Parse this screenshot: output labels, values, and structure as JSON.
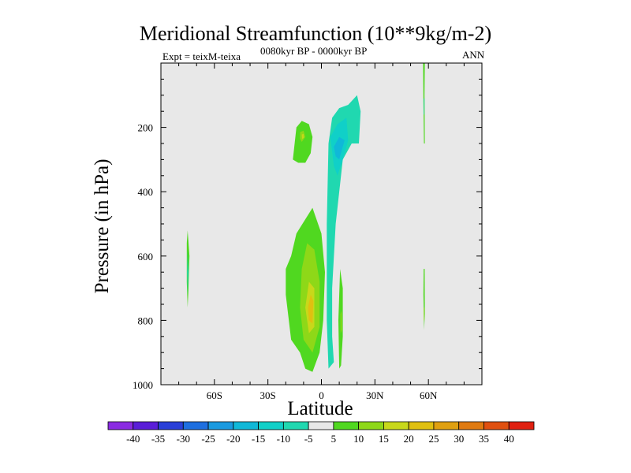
{
  "title": "Meridional Streamfunction (10**9kg/m-2)",
  "subtitle_left": "Expt = teixM-teixa",
  "subtitle_center": "0080kyr BP - 0000kyr BP",
  "subtitle_right": "ANN",
  "chart_data": {
    "type": "contour",
    "title": "Meridional Streamfunction (10**9kg/m-2)",
    "xlabel": "Latitude",
    "ylabel": "Pressure (in hPa)",
    "xlim": [
      -90,
      90
    ],
    "ylim": [
      1000,
      0
    ],
    "x_ticks": [
      {
        "value": -60,
        "label": "60S"
      },
      {
        "value": -30,
        "label": "30S"
      },
      {
        "value": 0,
        "label": "0"
      },
      {
        "value": 30,
        "label": "30N"
      },
      {
        "value": 60,
        "label": "60N"
      }
    ],
    "y_ticks": [
      {
        "value": 200,
        "label": "200"
      },
      {
        "value": 400,
        "label": "400"
      },
      {
        "value": 600,
        "label": "600"
      },
      {
        "value": 800,
        "label": "800"
      },
      {
        "value": 1000,
        "label": "1000"
      }
    ],
    "background_color": "#e8e8e8",
    "colorbar": {
      "labels": [
        "-40",
        "-35",
        "-30",
        "-25",
        "-20",
        "-15",
        "-10",
        "-5",
        "5",
        "10",
        "15",
        "20",
        "25",
        "30",
        "35",
        "40"
      ],
      "colors": [
        "#8a2be2",
        "#5a1ed8",
        "#2a3fd8",
        "#1e6fe0",
        "#1a9ae0",
        "#10b8d8",
        "#10d0c8",
        "#20d8b0",
        "#e8e8e8",
        "#50d820",
        "#8ed818",
        "#c8d81a",
        "#e0c010",
        "#e0a010",
        "#e07a10",
        "#e05010",
        "#e02010"
      ]
    },
    "regions": [
      {
        "level": 10,
        "color": "#50d820",
        "points": [
          [
            -75,
            520
          ],
          [
            -74,
            600
          ],
          [
            -74.5,
            700
          ],
          [
            -75,
            760
          ],
          [
            -75.5,
            680
          ],
          [
            -75.5,
            560
          ]
        ]
      },
      {
        "level": -5,
        "color": "#20d8b0",
        "points": [
          [
            -75,
            580
          ],
          [
            -74.5,
            650
          ],
          [
            -75,
            720
          ],
          [
            -75.3,
            650
          ]
        ]
      },
      {
        "level": 10,
        "color": "#50d820",
        "points": [
          [
            -16,
            300
          ],
          [
            -14,
            200
          ],
          [
            -11,
            180
          ],
          [
            -7,
            190
          ],
          [
            -5,
            230
          ],
          [
            -6,
            280
          ],
          [
            -9,
            310
          ],
          [
            -13,
            310
          ]
        ]
      },
      {
        "level": 15,
        "color": "#8ed818",
        "points": [
          [
            -12,
            215
          ],
          [
            -10,
            210
          ],
          [
            -9,
            230
          ],
          [
            -11,
            245
          ],
          [
            -12,
            235
          ]
        ]
      },
      {
        "level": 20,
        "color": "#c8d81a",
        "points": [
          [
            -11,
            222
          ],
          [
            -10,
            220
          ],
          [
            -9.8,
            232
          ],
          [
            -10.8,
            236
          ]
        ]
      },
      {
        "level": 10,
        "color": "#50d820",
        "points": [
          [
            -17,
            600
          ],
          [
            -14,
            530
          ],
          [
            -5,
            450
          ],
          [
            0,
            530
          ],
          [
            2,
            650
          ],
          [
            1,
            800
          ],
          [
            -1,
            900
          ],
          [
            -5,
            960
          ],
          [
            -9,
            950
          ],
          [
            -12,
            900
          ],
          [
            -17,
            860
          ],
          [
            -20,
            720
          ],
          [
            -20,
            640
          ]
        ]
      },
      {
        "level": 15,
        "color": "#8ed818",
        "points": [
          [
            -8,
            560
          ],
          [
            -4,
            580
          ],
          [
            -1,
            680
          ],
          [
            -1,
            820
          ],
          [
            -5,
            900
          ],
          [
            -10,
            860
          ],
          [
            -12,
            760
          ],
          [
            -11,
            640
          ]
        ]
      },
      {
        "level": 20,
        "color": "#c8d81a",
        "points": [
          [
            -7,
            680
          ],
          [
            -4,
            700
          ],
          [
            -4,
            820
          ],
          [
            -7,
            840
          ],
          [
            -9,
            760
          ]
        ]
      },
      {
        "level": 25,
        "color": "#e0c010",
        "points": [
          [
            -6,
            720
          ],
          [
            -4.5,
            740
          ],
          [
            -5,
            810
          ],
          [
            -7,
            800
          ],
          [
            -7.5,
            760
          ]
        ]
      },
      {
        "level": -5,
        "color": "#20d8b0",
        "points": [
          [
            4,
            950
          ],
          [
            3,
            800
          ],
          [
            3,
            500
          ],
          [
            4,
            250
          ],
          [
            6,
            170
          ],
          [
            10,
            140
          ],
          [
            15,
            130
          ],
          [
            20,
            100
          ],
          [
            22,
            150
          ],
          [
            21,
            250
          ],
          [
            17,
            250
          ],
          [
            12,
            300
          ],
          [
            10,
            400
          ],
          [
            8,
            500
          ],
          [
            6,
            700
          ],
          [
            6,
            850
          ],
          [
            7,
            930
          ]
        ]
      },
      {
        "level": -10,
        "color": "#10d0c8",
        "points": [
          [
            5,
            230
          ],
          [
            9,
            190
          ],
          [
            14,
            170
          ],
          [
            15,
            240
          ],
          [
            12,
            300
          ],
          [
            9,
            350
          ],
          [
            7,
            320
          ]
        ]
      },
      {
        "level": -15,
        "color": "#10b8d8",
        "points": [
          [
            7,
            260
          ],
          [
            10,
            230
          ],
          [
            13,
            240
          ],
          [
            10,
            300
          ],
          [
            8,
            290
          ]
        ]
      },
      {
        "level": 10,
        "color": "#50d820",
        "points": [
          [
            10,
            950
          ],
          [
            9.5,
            800
          ],
          [
            10.5,
            640
          ],
          [
            12,
            700
          ],
          [
            12,
            850
          ],
          [
            11,
            940
          ]
        ]
      },
      {
        "level": 15,
        "color": "#8ed818",
        "points": [
          [
            10.7,
            780
          ],
          [
            11.3,
            770
          ],
          [
            11.5,
            830
          ],
          [
            10.8,
            840
          ]
        ]
      },
      {
        "level": 10,
        "color": "#50d820",
        "points": [
          [
            57,
            0
          ],
          [
            58,
            0
          ],
          [
            57.8,
            100
          ],
          [
            58,
            250
          ],
          [
            57.5,
            250
          ],
          [
            57.2,
            120
          ]
        ]
      },
      {
        "level": -5,
        "color": "#20d8b0",
        "points": [
          [
            57.4,
            110
          ],
          [
            57.8,
            110
          ],
          [
            57.7,
            160
          ],
          [
            57.4,
            160
          ]
        ]
      },
      {
        "level": 10,
        "color": "#50d820",
        "points": [
          [
            57.3,
            640
          ],
          [
            57.9,
            640
          ],
          [
            58,
            780
          ],
          [
            57.6,
            830
          ],
          [
            57.2,
            720
          ]
        ]
      },
      {
        "level": 15,
        "color": "#8ed818",
        "points": [
          [
            57.4,
            760
          ],
          [
            57.8,
            760
          ],
          [
            57.7,
            800
          ],
          [
            57.4,
            800
          ]
        ]
      }
    ]
  }
}
